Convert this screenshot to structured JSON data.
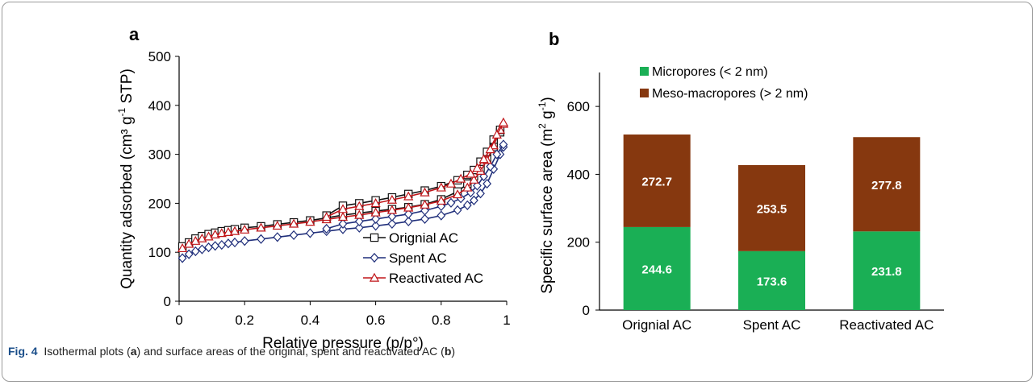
{
  "caption": {
    "fig_label": "Fig. 4",
    "part1": "Isothermal plots (",
    "a": "a",
    "part2": ") and surface areas of the original, spent and reactivated AC (",
    "b": "b",
    "part3": ")"
  },
  "chart_data": [
    {
      "type": "line",
      "panel_label": "a",
      "xlabel": "Relative pressure (p/p°)",
      "ylabel_main": "Quantity adsorbed (cm³ g",
      "ylabel_sup": "-1",
      "ylabel_end": " STP)",
      "xlim": [
        0,
        1
      ],
      "ylim": [
        0,
        500
      ],
      "xticks": [
        0,
        0.2,
        0.4,
        0.6,
        0.8,
        1
      ],
      "xtick_labels": [
        "0",
        "0.2",
        "0.4",
        "0.6",
        "0.8",
        "1"
      ],
      "yticks": [
        0,
        100,
        200,
        300,
        400,
        500
      ],
      "legend_position": "bottom-right",
      "series": [
        {
          "name": "Orignial AC",
          "color": "#111111",
          "marker": "square",
          "adsorption": [
            [
              0.01,
              112
            ],
            [
              0.03,
              120
            ],
            [
              0.05,
              128
            ],
            [
              0.07,
              133
            ],
            [
              0.09,
              137
            ],
            [
              0.11,
              140
            ],
            [
              0.13,
              143
            ],
            [
              0.15,
              145
            ],
            [
              0.17,
              147
            ],
            [
              0.2,
              150
            ],
            [
              0.25,
              153
            ],
            [
              0.3,
              157
            ],
            [
              0.35,
              161
            ],
            [
              0.4,
              165
            ],
            [
              0.45,
              170
            ],
            [
              0.5,
              176
            ],
            [
              0.55,
              180
            ],
            [
              0.6,
              184
            ],
            [
              0.65,
              188
            ],
            [
              0.7,
              192
            ],
            [
              0.75,
              198
            ],
            [
              0.8,
              208
            ],
            [
              0.85,
              224
            ],
            [
              0.88,
              240
            ],
            [
              0.9,
              255
            ],
            [
              0.92,
              272
            ],
            [
              0.94,
              290
            ],
            [
              0.96,
              315
            ],
            [
              0.98,
              345
            ]
          ],
          "desorption": [
            [
              0.98,
              350
            ],
            [
              0.96,
              330
            ],
            [
              0.94,
              305
            ],
            [
              0.92,
              285
            ],
            [
              0.9,
              268
            ],
            [
              0.88,
              258
            ],
            [
              0.85,
              247
            ],
            [
              0.8,
              235
            ],
            [
              0.75,
              226
            ],
            [
              0.7,
              219
            ],
            [
              0.65,
              212
            ],
            [
              0.6,
              206
            ],
            [
              0.55,
              200
            ],
            [
              0.5,
              195
            ],
            [
              0.45,
              175
            ]
          ]
        },
        {
          "name": "Spent AC",
          "color": "#1f2e7a",
          "marker": "diamond",
          "adsorption": [
            [
              0.01,
              88
            ],
            [
              0.03,
              96
            ],
            [
              0.05,
              102
            ],
            [
              0.07,
              106
            ],
            [
              0.09,
              110
            ],
            [
              0.11,
              113
            ],
            [
              0.13,
              115
            ],
            [
              0.15,
              118
            ],
            [
              0.17,
              120
            ],
            [
              0.2,
              123
            ],
            [
              0.25,
              127
            ],
            [
              0.3,
              131
            ],
            [
              0.35,
              135
            ],
            [
              0.4,
              139
            ],
            [
              0.45,
              143
            ],
            [
              0.5,
              147
            ],
            [
              0.55,
              150
            ],
            [
              0.6,
              154
            ],
            [
              0.65,
              158
            ],
            [
              0.7,
              163
            ],
            [
              0.75,
              168
            ],
            [
              0.8,
              175
            ],
            [
              0.85,
              186
            ],
            [
              0.88,
              196
            ],
            [
              0.9,
              206
            ],
            [
              0.92,
              220
            ],
            [
              0.94,
              240
            ],
            [
              0.96,
              270
            ],
            [
              0.98,
              300
            ],
            [
              0.99,
              315
            ]
          ],
          "desorption": [
            [
              0.99,
              320
            ],
            [
              0.97,
              300
            ],
            [
              0.95,
              275
            ],
            [
              0.93,
              255
            ],
            [
              0.91,
              236
            ],
            [
              0.89,
              222
            ],
            [
              0.86,
              210
            ],
            [
              0.83,
              201
            ],
            [
              0.8,
              194
            ],
            [
              0.75,
              185
            ],
            [
              0.7,
              178
            ],
            [
              0.65,
              173
            ],
            [
              0.6,
              168
            ],
            [
              0.55,
              163
            ],
            [
              0.5,
              158
            ],
            [
              0.45,
              148
            ]
          ]
        },
        {
          "name": "Reactivated AC",
          "color": "#c0161a",
          "marker": "triangle",
          "adsorption": [
            [
              0.01,
              108
            ],
            [
              0.03,
              117
            ],
            [
              0.05,
              123
            ],
            [
              0.07,
              128
            ],
            [
              0.09,
              132
            ],
            [
              0.11,
              136
            ],
            [
              0.13,
              139
            ],
            [
              0.15,
              141
            ],
            [
              0.17,
              143
            ],
            [
              0.2,
              146
            ],
            [
              0.25,
              150
            ],
            [
              0.3,
              154
            ],
            [
              0.35,
              158
            ],
            [
              0.4,
              162
            ],
            [
              0.45,
              167
            ],
            [
              0.5,
              172
            ],
            [
              0.55,
              176
            ],
            [
              0.6,
              181
            ],
            [
              0.65,
              186
            ],
            [
              0.7,
              191
            ],
            [
              0.75,
              197
            ],
            [
              0.8,
              205
            ],
            [
              0.85,
              218
            ],
            [
              0.88,
              232
            ],
            [
              0.9,
              248
            ],
            [
              0.92,
              266
            ],
            [
              0.94,
              288
            ],
            [
              0.96,
              318
            ],
            [
              0.98,
              350
            ],
            [
              0.99,
              362
            ]
          ],
          "desorption": [
            [
              0.99,
              365
            ],
            [
              0.97,
              340
            ],
            [
              0.95,
              310
            ],
            [
              0.93,
              290
            ],
            [
              0.91,
              272
            ],
            [
              0.89,
              260
            ],
            [
              0.86,
              250
            ],
            [
              0.83,
              240
            ],
            [
              0.8,
              232
            ],
            [
              0.75,
              222
            ],
            [
              0.7,
              214
            ],
            [
              0.65,
              207
            ],
            [
              0.6,
              200
            ],
            [
              0.55,
              194
            ],
            [
              0.5,
              188
            ],
            [
              0.45,
              172
            ]
          ]
        }
      ]
    },
    {
      "type": "bar",
      "stacked": true,
      "panel_label": "b",
      "ylabel_main": "Specific surface area (m",
      "ylabel_sup1": "2",
      "ylabel_mid": " g",
      "ylabel_sup2": "-1",
      "ylabel_end": ")",
      "categories": [
        "Orignial AC",
        "Spent AC",
        "Reactivated AC"
      ],
      "ylim": [
        0,
        700
      ],
      "yticks": [
        0,
        200,
        400,
        600
      ],
      "legend_position": "top-left",
      "series": [
        {
          "name": "Micropores (< 2 nm)",
          "color": "#1aaf55",
          "values": [
            244.6,
            173.6,
            231.8
          ],
          "labels": [
            "244.6",
            "173.6",
            "231.8"
          ]
        },
        {
          "name": "Meso-macropores (> 2 nm)",
          "color": "#86380f",
          "values": [
            272.7,
            253.5,
            277.8
          ],
          "labels": [
            "272.7",
            "253.5",
            "277.8"
          ]
        }
      ]
    }
  ]
}
